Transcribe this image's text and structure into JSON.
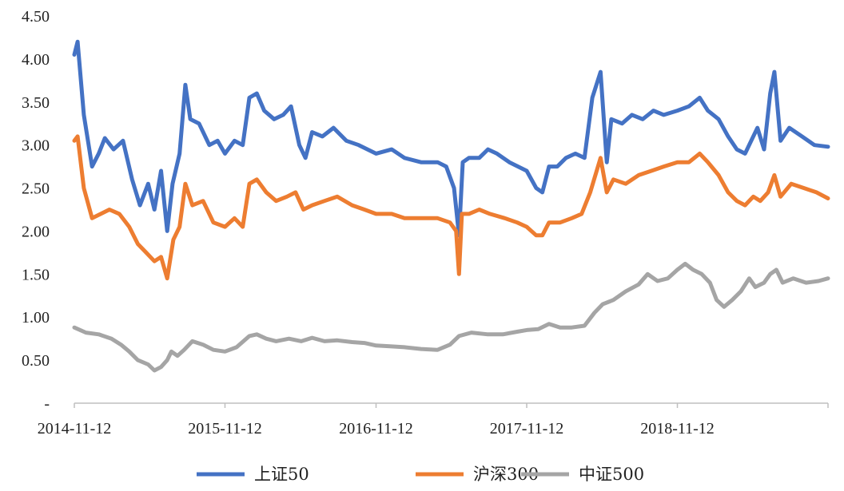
{
  "chart_data": {
    "type": "line",
    "title": "",
    "xlabel": "",
    "ylabel": "",
    "ylim": [
      0,
      4.5
    ],
    "y_ticks": [
      0,
      0.5,
      1.0,
      1.5,
      2.0,
      2.5,
      3.0,
      3.5,
      4.0,
      4.5
    ],
    "y_tick_labels": [
      "-",
      "0.50",
      "1.00",
      "1.50",
      "2.00",
      "2.50",
      "3.00",
      "3.50",
      "4.00",
      "4.50"
    ],
    "x_range": [
      "2014-11-12",
      "2019-11-12"
    ],
    "x_ticks": [
      "2014-11-12",
      "2015-11-12",
      "2016-11-12",
      "2017-11-12",
      "2018-11-12"
    ],
    "grid": false,
    "legend_position": "bottom",
    "series": [
      {
        "name": "上证50",
        "color": "#4472C4",
        "points": [
          [
            "2014-11-12",
            4.05
          ],
          [
            "2014-11-20",
            4.2
          ],
          [
            "2014-12-05",
            3.35
          ],
          [
            "2014-12-25",
            2.75
          ],
          [
            "2015-01-10",
            2.9
          ],
          [
            "2015-01-25",
            3.08
          ],
          [
            "2015-02-15",
            2.95
          ],
          [
            "2015-03-10",
            3.05
          ],
          [
            "2015-04-01",
            2.6
          ],
          [
            "2015-04-20",
            2.3
          ],
          [
            "2015-05-10",
            2.55
          ],
          [
            "2015-05-25",
            2.25
          ],
          [
            "2015-06-10",
            2.7
          ],
          [
            "2015-06-25",
            2.0
          ],
          [
            "2015-07-08",
            2.55
          ],
          [
            "2015-07-25",
            2.9
          ],
          [
            "2015-08-08",
            3.7
          ],
          [
            "2015-08-20",
            3.3
          ],
          [
            "2015-09-10",
            3.25
          ],
          [
            "2015-10-05",
            3.0
          ],
          [
            "2015-10-25",
            3.05
          ],
          [
            "2015-11-12",
            2.9
          ],
          [
            "2015-12-05",
            3.05
          ],
          [
            "2015-12-25",
            3.0
          ],
          [
            "2016-01-10",
            3.55
          ],
          [
            "2016-01-28",
            3.6
          ],
          [
            "2016-02-15",
            3.4
          ],
          [
            "2016-03-10",
            3.3
          ],
          [
            "2016-04-01",
            3.35
          ],
          [
            "2016-04-20",
            3.45
          ],
          [
            "2016-05-10",
            3.0
          ],
          [
            "2016-05-25",
            2.85
          ],
          [
            "2016-06-10",
            3.15
          ],
          [
            "2016-07-05",
            3.1
          ],
          [
            "2016-08-01",
            3.2
          ],
          [
            "2016-09-01",
            3.05
          ],
          [
            "2016-10-01",
            3.0
          ],
          [
            "2016-11-12",
            2.9
          ],
          [
            "2016-12-20",
            2.95
          ],
          [
            "2017-01-20",
            2.85
          ],
          [
            "2017-03-01",
            2.8
          ],
          [
            "2017-04-10",
            2.8
          ],
          [
            "2017-05-01",
            2.75
          ],
          [
            "2017-05-20",
            2.5
          ],
          [
            "2017-06-01",
            1.95
          ],
          [
            "2017-06-10",
            2.8
          ],
          [
            "2017-06-25",
            2.85
          ],
          [
            "2017-07-20",
            2.85
          ],
          [
            "2017-08-10",
            2.95
          ],
          [
            "2017-09-01",
            2.9
          ],
          [
            "2017-10-01",
            2.8
          ],
          [
            "2017-11-12",
            2.7
          ],
          [
            "2017-12-05",
            2.5
          ],
          [
            "2017-12-20",
            2.45
          ],
          [
            "2018-01-05",
            2.75
          ],
          [
            "2018-01-25",
            2.75
          ],
          [
            "2018-02-15",
            2.85
          ],
          [
            "2018-03-10",
            2.9
          ],
          [
            "2018-04-01",
            2.85
          ],
          [
            "2018-04-20",
            3.55
          ],
          [
            "2018-05-10",
            3.85
          ],
          [
            "2018-05-25",
            2.8
          ],
          [
            "2018-06-05",
            3.3
          ],
          [
            "2018-07-01",
            3.25
          ],
          [
            "2018-07-25",
            3.35
          ],
          [
            "2018-08-20",
            3.3
          ],
          [
            "2018-09-15",
            3.4
          ],
          [
            "2018-10-10",
            3.35
          ],
          [
            "2018-11-12",
            3.4
          ],
          [
            "2018-12-10",
            3.45
          ],
          [
            "2019-01-05",
            3.55
          ],
          [
            "2019-01-25",
            3.4
          ],
          [
            "2019-02-20",
            3.3
          ],
          [
            "2019-03-15",
            3.1
          ],
          [
            "2019-04-05",
            2.95
          ],
          [
            "2019-04-25",
            2.9
          ],
          [
            "2019-05-10",
            3.05
          ],
          [
            "2019-05-25",
            3.2
          ],
          [
            "2019-06-10",
            2.95
          ],
          [
            "2019-06-25",
            3.6
          ],
          [
            "2019-07-05",
            3.85
          ],
          [
            "2019-07-20",
            3.05
          ],
          [
            "2019-08-10",
            3.2
          ],
          [
            "2019-09-10",
            3.1
          ],
          [
            "2019-10-10",
            3.0
          ],
          [
            "2019-11-12",
            2.98
          ]
        ]
      },
      {
        "name": "沪深300",
        "color": "#ED7D31",
        "points": [
          [
            "2014-11-12",
            3.05
          ],
          [
            "2014-11-20",
            3.1
          ],
          [
            "2014-12-05",
            2.5
          ],
          [
            "2014-12-25",
            2.15
          ],
          [
            "2015-01-15",
            2.2
          ],
          [
            "2015-02-05",
            2.25
          ],
          [
            "2015-03-01",
            2.2
          ],
          [
            "2015-03-25",
            2.05
          ],
          [
            "2015-04-15",
            1.85
          ],
          [
            "2015-05-05",
            1.75
          ],
          [
            "2015-05-25",
            1.65
          ],
          [
            "2015-06-10",
            1.7
          ],
          [
            "2015-06-25",
            1.45
          ],
          [
            "2015-07-10",
            1.9
          ],
          [
            "2015-07-25",
            2.05
          ],
          [
            "2015-08-08",
            2.55
          ],
          [
            "2015-08-25",
            2.3
          ],
          [
            "2015-09-20",
            2.35
          ],
          [
            "2015-10-15",
            2.1
          ],
          [
            "2015-11-12",
            2.05
          ],
          [
            "2015-12-05",
            2.15
          ],
          [
            "2015-12-25",
            2.05
          ],
          [
            "2016-01-10",
            2.55
          ],
          [
            "2016-01-28",
            2.6
          ],
          [
            "2016-02-20",
            2.45
          ],
          [
            "2016-03-15",
            2.35
          ],
          [
            "2016-04-10",
            2.4
          ],
          [
            "2016-05-01",
            2.45
          ],
          [
            "2016-05-20",
            2.25
          ],
          [
            "2016-06-10",
            2.3
          ],
          [
            "2016-07-10",
            2.35
          ],
          [
            "2016-08-10",
            2.4
          ],
          [
            "2016-09-15",
            2.3
          ],
          [
            "2016-10-15",
            2.25
          ],
          [
            "2016-11-12",
            2.2
          ],
          [
            "2016-12-20",
            2.2
          ],
          [
            "2017-01-20",
            2.15
          ],
          [
            "2017-03-01",
            2.15
          ],
          [
            "2017-04-10",
            2.15
          ],
          [
            "2017-05-10",
            2.1
          ],
          [
            "2017-05-25",
            2.0
          ],
          [
            "2017-06-01",
            1.5
          ],
          [
            "2017-06-08",
            2.2
          ],
          [
            "2017-06-25",
            2.2
          ],
          [
            "2017-07-20",
            2.25
          ],
          [
            "2017-08-15",
            2.2
          ],
          [
            "2017-09-20",
            2.15
          ],
          [
            "2017-10-20",
            2.1
          ],
          [
            "2017-11-12",
            2.05
          ],
          [
            "2017-12-05",
            1.95
          ],
          [
            "2017-12-20",
            1.95
          ],
          [
            "2018-01-05",
            2.1
          ],
          [
            "2018-02-01",
            2.1
          ],
          [
            "2018-03-01",
            2.15
          ],
          [
            "2018-03-25",
            2.2
          ],
          [
            "2018-04-15",
            2.45
          ],
          [
            "2018-05-10",
            2.85
          ],
          [
            "2018-05-25",
            2.45
          ],
          [
            "2018-06-10",
            2.6
          ],
          [
            "2018-07-10",
            2.55
          ],
          [
            "2018-08-10",
            2.65
          ],
          [
            "2018-09-10",
            2.7
          ],
          [
            "2018-10-10",
            2.75
          ],
          [
            "2018-11-12",
            2.8
          ],
          [
            "2018-12-10",
            2.8
          ],
          [
            "2019-01-05",
            2.9
          ],
          [
            "2019-01-25",
            2.8
          ],
          [
            "2019-02-20",
            2.65
          ],
          [
            "2019-03-15",
            2.45
          ],
          [
            "2019-04-05",
            2.35
          ],
          [
            "2019-04-25",
            2.3
          ],
          [
            "2019-05-15",
            2.4
          ],
          [
            "2019-06-01",
            2.35
          ],
          [
            "2019-06-20",
            2.45
          ],
          [
            "2019-07-05",
            2.65
          ],
          [
            "2019-07-20",
            2.4
          ],
          [
            "2019-08-15",
            2.55
          ],
          [
            "2019-09-15",
            2.5
          ],
          [
            "2019-10-15",
            2.45
          ],
          [
            "2019-11-12",
            2.38
          ]
        ]
      },
      {
        "name": "中证500",
        "color": "#A5A5A5",
        "points": [
          [
            "2014-11-12",
            0.88
          ],
          [
            "2014-12-10",
            0.82
          ],
          [
            "2015-01-10",
            0.8
          ],
          [
            "2015-02-10",
            0.75
          ],
          [
            "2015-03-05",
            0.68
          ],
          [
            "2015-03-25",
            0.6
          ],
          [
            "2015-04-15",
            0.5
          ],
          [
            "2015-05-10",
            0.45
          ],
          [
            "2015-05-25",
            0.38
          ],
          [
            "2015-06-10",
            0.42
          ],
          [
            "2015-06-25",
            0.5
          ],
          [
            "2015-07-05",
            0.6
          ],
          [
            "2015-07-20",
            0.55
          ],
          [
            "2015-08-05",
            0.62
          ],
          [
            "2015-08-25",
            0.72
          ],
          [
            "2015-09-20",
            0.68
          ],
          [
            "2015-10-15",
            0.62
          ],
          [
            "2015-11-12",
            0.6
          ],
          [
            "2015-12-10",
            0.65
          ],
          [
            "2016-01-10",
            0.78
          ],
          [
            "2016-01-28",
            0.8
          ],
          [
            "2016-02-20",
            0.75
          ],
          [
            "2016-03-15",
            0.72
          ],
          [
            "2016-04-15",
            0.75
          ],
          [
            "2016-05-15",
            0.72
          ],
          [
            "2016-06-10",
            0.76
          ],
          [
            "2016-07-10",
            0.72
          ],
          [
            "2016-08-10",
            0.73
          ],
          [
            "2016-09-15",
            0.71
          ],
          [
            "2016-10-15",
            0.7
          ],
          [
            "2016-11-12",
            0.67
          ],
          [
            "2016-12-20",
            0.66
          ],
          [
            "2017-01-20",
            0.65
          ],
          [
            "2017-03-01",
            0.63
          ],
          [
            "2017-04-10",
            0.62
          ],
          [
            "2017-05-10",
            0.68
          ],
          [
            "2017-06-01",
            0.78
          ],
          [
            "2017-07-01",
            0.82
          ],
          [
            "2017-08-10",
            0.8
          ],
          [
            "2017-09-15",
            0.8
          ],
          [
            "2017-10-20",
            0.83
          ],
          [
            "2017-11-12",
            0.85
          ],
          [
            "2017-12-10",
            0.86
          ],
          [
            "2018-01-05",
            0.92
          ],
          [
            "2018-02-01",
            0.88
          ],
          [
            "2018-03-01",
            0.88
          ],
          [
            "2018-04-01",
            0.9
          ],
          [
            "2018-04-25",
            1.05
          ],
          [
            "2018-05-15",
            1.15
          ],
          [
            "2018-06-10",
            1.2
          ],
          [
            "2018-07-10",
            1.3
          ],
          [
            "2018-08-10",
            1.38
          ],
          [
            "2018-09-01",
            1.5
          ],
          [
            "2018-09-25",
            1.42
          ],
          [
            "2018-10-20",
            1.45
          ],
          [
            "2018-11-12",
            1.55
          ],
          [
            "2018-12-01",
            1.62
          ],
          [
            "2018-12-20",
            1.55
          ],
          [
            "2019-01-10",
            1.5
          ],
          [
            "2019-01-30",
            1.4
          ],
          [
            "2019-02-15",
            1.2
          ],
          [
            "2019-03-05",
            1.12
          ],
          [
            "2019-03-25",
            1.2
          ],
          [
            "2019-04-15",
            1.3
          ],
          [
            "2019-05-05",
            1.45
          ],
          [
            "2019-05-20",
            1.35
          ],
          [
            "2019-06-10",
            1.4
          ],
          [
            "2019-06-25",
            1.5
          ],
          [
            "2019-07-10",
            1.55
          ],
          [
            "2019-07-25",
            1.4
          ],
          [
            "2019-08-20",
            1.45
          ],
          [
            "2019-09-20",
            1.4
          ],
          [
            "2019-10-20",
            1.42
          ],
          [
            "2019-11-12",
            1.45
          ]
        ]
      }
    ]
  }
}
